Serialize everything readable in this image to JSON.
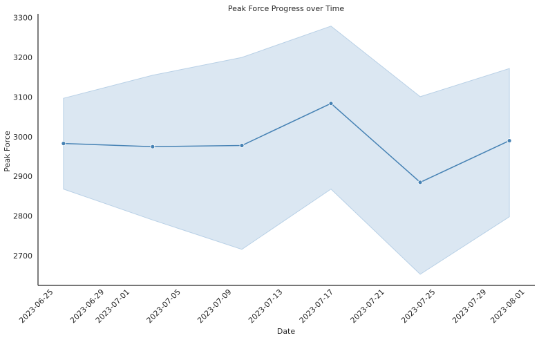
{
  "chart_data": {
    "type": "line",
    "title": "Peak Force Progress over Time",
    "xlabel": "Date",
    "ylabel": "Peak Force",
    "x_ticks": [
      "2023-06-25",
      "2023-06-29",
      "2023-07-01",
      "2023-07-05",
      "2023-07-09",
      "2023-07-13",
      "2023-07-17",
      "2023-07-21",
      "2023-07-25",
      "2023-07-29",
      "2023-08-01"
    ],
    "y_ticks": [
      2700,
      2800,
      2900,
      3000,
      3100,
      3200,
      3300
    ],
    "xlim": [
      "2023-06-24",
      "2023-08-02"
    ],
    "ylim": [
      2625,
      3310
    ],
    "grid": false,
    "line_color": "#4682b4",
    "band_color": "#b8d0e6",
    "series": [
      {
        "x": [
          "2023-06-26",
          "2023-07-03",
          "2023-07-10",
          "2023-07-17",
          "2023-07-24",
          "2023-07-31"
        ],
        "y": [
          2983,
          2975,
          2978,
          3084,
          2885,
          2990
        ],
        "lower": [
          2868,
          2790,
          2716,
          2868,
          2653,
          2798
        ],
        "upper": [
          3097,
          3155,
          3200,
          3279,
          3101,
          3172
        ]
      }
    ]
  }
}
